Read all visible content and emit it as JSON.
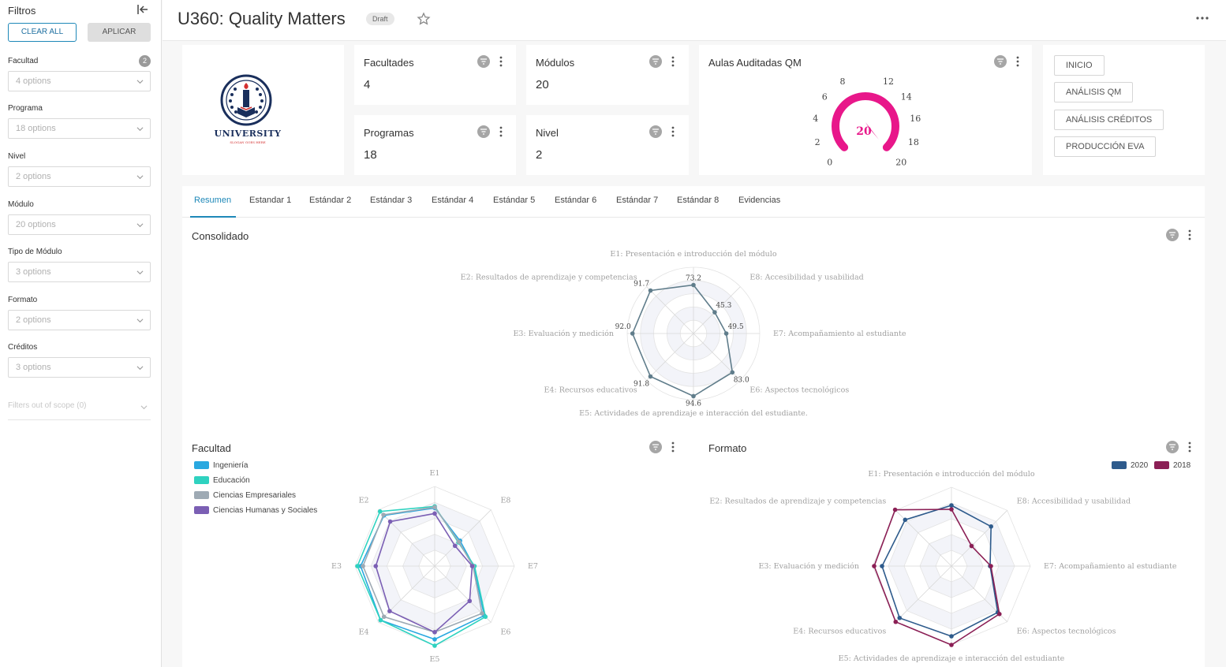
{
  "sidebar": {
    "title": "Filtros",
    "clear_all": "CLEAR ALL",
    "apply": "APLICAR",
    "filters": [
      {
        "label": "Facultad",
        "placeholder": "4 options",
        "badge": "2"
      },
      {
        "label": "Programa",
        "placeholder": "18 options"
      },
      {
        "label": "Nivel",
        "placeholder": "2 options"
      },
      {
        "label": "Módulo",
        "placeholder": "20 options"
      },
      {
        "label": "Tipo de Módulo",
        "placeholder": "3 options"
      },
      {
        "label": "Formato",
        "placeholder": "2 options"
      },
      {
        "label": "Créditos",
        "placeholder": "3 options"
      }
    ],
    "out_of_scope": "Filters out of scope (0)"
  },
  "header": {
    "title": "U360: Quality Matters",
    "status": "Draft"
  },
  "logo": {
    "name": "UNIVERSITY",
    "slogan": "SLOGAN GOES HERE"
  },
  "kpis": {
    "facultades": {
      "title": "Facultades",
      "value": "4"
    },
    "modulos": {
      "title": "Módulos",
      "value": "20"
    },
    "programas": {
      "title": "Programas",
      "value": "18"
    },
    "nivel": {
      "title": "Nivel",
      "value": "2"
    }
  },
  "gauge": {
    "title": "Aulas Auditadas QM",
    "value": "20",
    "ticks": [
      "0",
      "2",
      "4",
      "6",
      "8",
      "12",
      "14",
      "16",
      "18",
      "20"
    ],
    "min": 0,
    "max": 20,
    "level": 20,
    "color": "#e8178a"
  },
  "nav_buttons": [
    "INICIO",
    "ANÁLISIS QM",
    "ANÁLISIS CRÉDITOS",
    "PRODUCCIÓN EVA"
  ],
  "tabs": [
    "Resumen",
    "Estandar 1",
    "Estándar 2",
    "Estándar 3",
    "Estándar 4",
    "Estándar 5",
    "Estándar 6",
    "Estándar 7",
    "Estándar 8",
    "Evidencias"
  ],
  "chart_data": [
    {
      "type": "radar",
      "title": "Consolidado",
      "axes": [
        "E1: Presentación  e introducción del módulo",
        "E8: Accesibilidad y usabilidad",
        "E7: Acompañamiento al estudiante",
        "E6: Aspectos tecnológicos",
        "E5: Actividades de aprendizaje e interacción del estudiante.",
        "E4: Recursos educativos",
        "E3: Evaluación y medición",
        "E2: Resultados de aprendizaje y competencias"
      ],
      "values": [
        73.2,
        45.3,
        49.5,
        83.0,
        94.6,
        91.8,
        92.0,
        91.7
      ],
      "value_labels": [
        "73.2",
        "45.3",
        "49.5",
        "83.0",
        "94.6",
        "91.8",
        "92.0",
        "91.7"
      ],
      "max": 100,
      "color": "#607d8b"
    },
    {
      "type": "radar",
      "title": "Facultad",
      "axes": [
        "E1",
        "E8",
        "E7",
        "E6",
        "E5",
        "E4",
        "E3",
        "E2"
      ],
      "max": 100,
      "legend": "left",
      "series": [
        {
          "name": "Ingeniería",
          "color": "#29a8e0",
          "values": [
            73,
            45,
            49,
            88,
            92,
            96,
            93,
            90
          ]
        },
        {
          "name": "Educación",
          "color": "#2fd2c0",
          "values": [
            75,
            42,
            50,
            90,
            100,
            96,
            97,
            97
          ]
        },
        {
          "name": "Ciencias Empresariales",
          "color": "#9eaab4",
          "values": [
            74,
            43,
            48,
            84,
            83,
            90,
            90,
            91
          ]
        },
        {
          "name": "Ciencias Humanas y Sociales",
          "color": "#7b5fb4",
          "values": [
            66,
            36,
            47,
            62,
            83,
            80,
            74,
            79
          ]
        }
      ]
    },
    {
      "type": "radar",
      "title": "Formato",
      "axes": [
        "E1: Presentación e introducción del módulo",
        "E8: Accesibilidad y usabilidad",
        "E7: Acompañamiento al estudiante",
        "E6: Aspectos tecnológicos",
        "E5: Actividades de aprendizaje e interacción del estudiante",
        "E4: Recursos educativos",
        "E3: Evaluación y medición",
        "E2: Resultados de aprendizaje y competencias"
      ],
      "max": 100,
      "legend": "top-right",
      "series": [
        {
          "name": "2020",
          "color": "#2e5b8c",
          "values": [
            77,
            71,
            49,
            83,
            89,
            93,
            88,
            83
          ]
        },
        {
          "name": "2018",
          "color": "#8b1f55",
          "values": [
            72,
            36,
            50,
            86,
            100,
            100,
            98,
            101
          ]
        }
      ]
    }
  ]
}
